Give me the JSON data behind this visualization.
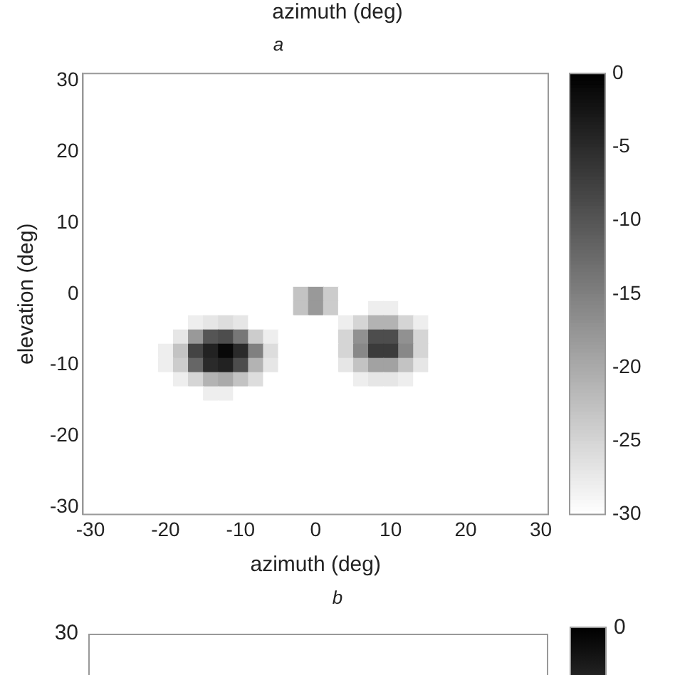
{
  "chart_data": [
    {
      "type": "other",
      "xlabel": "azimuth (deg)"
    },
    {
      "type": "heatmap",
      "title": "a",
      "xlabel": "azimuth (deg)",
      "ylabel": "elevation (deg)",
      "categories": [
        "-30",
        null,
        null,
        null,
        null,
        "-20",
        null,
        null,
        null,
        null,
        "-10",
        null,
        null,
        null,
        null,
        "0",
        null,
        null,
        null,
        null,
        "10",
        null,
        null,
        null,
        null,
        "20",
        null,
        null,
        null,
        null,
        "30"
      ],
      "y_categories": [
        "30",
        null,
        null,
        null,
        null,
        "20",
        null,
        null,
        null,
        null,
        "10",
        null,
        null,
        null,
        null,
        "0",
        null,
        null,
        null,
        null,
        "-10",
        null,
        null,
        null,
        null,
        "-20",
        null,
        null,
        null,
        null,
        "-30"
      ],
      "clim": [
        -30,
        0
      ],
      "cticks": [
        0,
        -5,
        -10,
        -15,
        -20,
        -25,
        -30
      ],
      "cells": [
        [
          -30,
          -30,
          -30,
          -30,
          -30,
          -30,
          -30,
          -30,
          -30,
          -30,
          -30,
          -30,
          -30,
          -30,
          -30,
          -30,
          -30,
          -30,
          -30,
          -30,
          -30,
          -30,
          -30,
          -30,
          -30,
          -30,
          -30,
          -30,
          -30,
          -30,
          -30
        ],
        [
          -30,
          -30,
          -30,
          -30,
          -30,
          -30,
          -30,
          -30,
          -30,
          -30,
          -30,
          -30,
          -30,
          -30,
          -30,
          -30,
          -30,
          -30,
          -30,
          -30,
          -30,
          -30,
          -30,
          -30,
          -30,
          -30,
          -30,
          -30,
          -30,
          -30,
          -30
        ],
        [
          -30,
          -30,
          -30,
          -30,
          -30,
          -30,
          -30,
          -30,
          -30,
          -30,
          -30,
          -30,
          -30,
          -30,
          -30,
          -30,
          -30,
          -30,
          -30,
          -30,
          -30,
          -30,
          -30,
          -30,
          -30,
          -30,
          -30,
          -30,
          -30,
          -30,
          -30
        ],
        [
          -30,
          -30,
          -30,
          -30,
          -30,
          -30,
          -30,
          -30,
          -30,
          -30,
          -30,
          -30,
          -30,
          -30,
          -30,
          -30,
          -30,
          -30,
          -30,
          -30,
          -30,
          -30,
          -30,
          -30,
          -30,
          -30,
          -30,
          -30,
          -30,
          -30,
          -30
        ],
        [
          -30,
          -30,
          -30,
          -30,
          -30,
          -30,
          -30,
          -30,
          -30,
          -30,
          -30,
          -30,
          -30,
          -30,
          -30,
          -30,
          -30,
          -30,
          -30,
          -30,
          -30,
          -30,
          -30,
          -30,
          -30,
          -30,
          -30,
          -30,
          -30,
          -30,
          -30
        ],
        [
          -30,
          -30,
          -30,
          -30,
          -30,
          -30,
          -30,
          -30,
          -30,
          -30,
          -30,
          -30,
          -30,
          -30,
          -30,
          -30,
          -30,
          -30,
          -30,
          -30,
          -30,
          -30,
          -30,
          -30,
          -30,
          -30,
          -30,
          -30,
          -30,
          -30,
          -30
        ],
        [
          -30,
          -30,
          -30,
          -30,
          -30,
          -30,
          -30,
          -30,
          -30,
          -30,
          -30,
          -30,
          -30,
          -30,
          -30,
          -30,
          -30,
          -30,
          -30,
          -30,
          -30,
          -30,
          -30,
          -30,
          -30,
          -30,
          -30,
          -30,
          -30,
          -30,
          -30
        ],
        [
          -30,
          -30,
          -30,
          -30,
          -30,
          -30,
          -30,
          -30,
          -30,
          -30,
          -30,
          -30,
          -30,
          -30,
          -30,
          -30,
          -30,
          -30,
          -30,
          -30,
          -30,
          -30,
          -30,
          -30,
          -30,
          -30,
          -30,
          -30,
          -30,
          -30,
          -30
        ],
        [
          -30,
          -30,
          -30,
          -30,
          -30,
          -30,
          -30,
          -30,
          -30,
          -30,
          -30,
          -30,
          -30,
          -30,
          -30,
          -30,
          -30,
          -30,
          -30,
          -30,
          -30,
          -30,
          -30,
          -30,
          -30,
          -30,
          -30,
          -30,
          -30,
          -30,
          -30
        ],
        [
          -30,
          -30,
          -30,
          -30,
          -30,
          -30,
          -30,
          -30,
          -30,
          -30,
          -30,
          -30,
          -30,
          -30,
          -30,
          -30,
          -30,
          -30,
          -30,
          -30,
          -30,
          -30,
          -30,
          -30,
          -30,
          -30,
          -30,
          -30,
          -30,
          -30,
          -30
        ],
        [
          -30,
          -30,
          -30,
          -30,
          -30,
          -30,
          -30,
          -30,
          -30,
          -30,
          -30,
          -30,
          -30,
          -30,
          -30,
          -30,
          -30,
          -30,
          -30,
          -30,
          -30,
          -30,
          -30,
          -30,
          -30,
          -30,
          -30,
          -30,
          -30,
          -30,
          -30
        ],
        [
          -30,
          -30,
          -30,
          -30,
          -30,
          -30,
          -30,
          -30,
          -30,
          -30,
          -30,
          -30,
          -30,
          -30,
          -30,
          -30,
          -30,
          -30,
          -30,
          -30,
          -30,
          -30,
          -30,
          -30,
          -30,
          -30,
          -30,
          -30,
          -30,
          -30,
          -30
        ],
        [
          -30,
          -30,
          -30,
          -30,
          -30,
          -30,
          -30,
          -30,
          -30,
          -30,
          -30,
          -30,
          -30,
          -30,
          -30,
          -30,
          -30,
          -30,
          -30,
          -30,
          -30,
          -30,
          -30,
          -30,
          -30,
          -30,
          -30,
          -30,
          -30,
          -30,
          -30
        ],
        [
          -30,
          -30,
          -30,
          -30,
          -30,
          -30,
          -30,
          -30,
          -30,
          -30,
          -30,
          -30,
          -30,
          -30,
          -30,
          -30,
          -30,
          -30,
          -30,
          -30,
          -30,
          -30,
          -30,
          -30,
          -30,
          -30,
          -30,
          -30,
          -30,
          -30,
          -30
        ],
        [
          -30,
          -30,
          -30,
          -30,
          -30,
          -30,
          -30,
          -30,
          -30,
          -30,
          -30,
          -30,
          -30,
          -30,
          -30,
          -30,
          -30,
          -30,
          -30,
          -30,
          -30,
          -30,
          -30,
          -30,
          -30,
          -30,
          -30,
          -30,
          -30,
          -30,
          -30
        ],
        [
          -30,
          -30,
          -30,
          -30,
          -30,
          -30,
          -30,
          -30,
          -30,
          -30,
          -30,
          -30,
          -30,
          -30,
          -23,
          -18,
          -24,
          -30,
          -30,
          -30,
          -30,
          -30,
          -30,
          -30,
          -30,
          -30,
          -30,
          -30,
          -30,
          -30,
          -30
        ],
        [
          -30,
          -30,
          -30,
          -30,
          -30,
          -30,
          -30,
          -30,
          -30,
          -30,
          -30,
          -30,
          -30,
          -30,
          -23,
          -18,
          -24,
          -30,
          -30,
          -28,
          -28,
          -30,
          -30,
          -30,
          -30,
          -30,
          -30,
          -30,
          -30,
          -30,
          -30
        ],
        [
          -30,
          -30,
          -30,
          -30,
          -30,
          -30,
          -30,
          -28,
          -27,
          -26,
          -27,
          -30,
          -30,
          -30,
          -30,
          -30,
          -30,
          -28,
          -25,
          -21,
          -21,
          -25,
          -28,
          -30,
          -30,
          -30,
          -30,
          -30,
          -30,
          -30,
          -30
        ],
        [
          -30,
          -30,
          -30,
          -30,
          -30,
          -30,
          -27,
          -18,
          -10,
          -9,
          -14,
          -24,
          -28,
          -30,
          -30,
          -30,
          -30,
          -25,
          -17,
          -9,
          -9,
          -17,
          -25,
          -30,
          -30,
          -30,
          -30,
          -30,
          -30,
          -30,
          -30
        ],
        [
          -30,
          -30,
          -30,
          -30,
          -30,
          -28,
          -23,
          -8,
          -4,
          -1,
          -5,
          -15,
          -26,
          -30,
          -30,
          -30,
          -30,
          -25,
          -16,
          -7,
          -7,
          -16,
          -25,
          -30,
          -30,
          -30,
          -30,
          -30,
          -30,
          -30,
          -30
        ],
        [
          -30,
          -30,
          -30,
          -30,
          -30,
          -28,
          -24,
          -12,
          -5,
          -4,
          -9,
          -21,
          -27,
          -30,
          -30,
          -30,
          -30,
          -27,
          -23,
          -19,
          -19,
          -23,
          -27,
          -30,
          -30,
          -30,
          -30,
          -30,
          -30,
          -30,
          -30
        ],
        [
          -30,
          -30,
          -30,
          -30,
          -30,
          -30,
          -28,
          -25,
          -21,
          -20,
          -23,
          -26,
          -30,
          -30,
          -30,
          -30,
          -30,
          -30,
          -28,
          -27,
          -27,
          -28,
          -30,
          -30,
          -30,
          -30,
          -30,
          -30,
          -30,
          -30,
          -30
        ],
        [
          -30,
          -30,
          -30,
          -30,
          -30,
          -30,
          -30,
          -30,
          -28,
          -28,
          -30,
          -30,
          -30,
          -30,
          -30,
          -30,
          -30,
          -30,
          -30,
          -30,
          -30,
          -30,
          -30,
          -30,
          -30,
          -30,
          -30,
          -30,
          -30,
          -30,
          -30
        ],
        [
          -30,
          -30,
          -30,
          -30,
          -30,
          -30,
          -30,
          -30,
          -30,
          -30,
          -30,
          -30,
          -30,
          -30,
          -30,
          -30,
          -30,
          -30,
          -30,
          -30,
          -30,
          -30,
          -30,
          -30,
          -30,
          -30,
          -30,
          -30,
          -30,
          -30,
          -30
        ],
        [
          -30,
          -30,
          -30,
          -30,
          -30,
          -30,
          -30,
          -30,
          -30,
          -30,
          -30,
          -30,
          -30,
          -30,
          -30,
          -30,
          -30,
          -30,
          -30,
          -30,
          -30,
          -30,
          -30,
          -30,
          -30,
          -30,
          -30,
          -30,
          -30,
          -30,
          -30
        ],
        [
          -30,
          -30,
          -30,
          -30,
          -30,
          -30,
          -30,
          -30,
          -30,
          -30,
          -30,
          -30,
          -30,
          -30,
          -30,
          -30,
          -30,
          -30,
          -30,
          -30,
          -30,
          -30,
          -30,
          -30,
          -30,
          -30,
          -30,
          -30,
          -30,
          -30,
          -30
        ],
        [
          -30,
          -30,
          -30,
          -30,
          -30,
          -30,
          -30,
          -30,
          -30,
          -30,
          -30,
          -30,
          -30,
          -30,
          -30,
          -30,
          -30,
          -30,
          -30,
          -30,
          -30,
          -30,
          -30,
          -30,
          -30,
          -30,
          -30,
          -30,
          -30,
          -30,
          -30
        ],
        [
          -30,
          -30,
          -30,
          -30,
          -30,
          -30,
          -30,
          -30,
          -30,
          -30,
          -30,
          -30,
          -30,
          -30,
          -30,
          -30,
          -30,
          -30,
          -30,
          -30,
          -30,
          -30,
          -30,
          -30,
          -30,
          -30,
          -30,
          -30,
          -30,
          -30,
          -30
        ],
        [
          -30,
          -30,
          -30,
          -30,
          -30,
          -30,
          -30,
          -30,
          -30,
          -30,
          -30,
          -30,
          -30,
          -30,
          -30,
          -30,
          -30,
          -30,
          -30,
          -30,
          -30,
          -30,
          -30,
          -30,
          -30,
          -30,
          -30,
          -30,
          -30,
          -30,
          -30
        ],
        [
          -30,
          -30,
          -30,
          -30,
          -30,
          -30,
          -30,
          -30,
          -30,
          -30,
          -30,
          -30,
          -30,
          -30,
          -30,
          -30,
          -30,
          -30,
          -30,
          -30,
          -30,
          -30,
          -30,
          -30,
          -30,
          -30,
          -30,
          -30,
          -30,
          -30,
          -30
        ],
        [
          -30,
          -30,
          -30,
          -30,
          -30,
          -30,
          -30,
          -30,
          -30,
          -30,
          -30,
          -30,
          -30,
          -30,
          -30,
          -30,
          -30,
          -30,
          -30,
          -30,
          -30,
          -30,
          -30,
          -30,
          -30,
          -30,
          -30,
          -30,
          -30,
          -30,
          -30
        ]
      ]
    },
    {
      "type": "other",
      "title": "b",
      "annotations": [
        "30",
        "0"
      ]
    }
  ]
}
